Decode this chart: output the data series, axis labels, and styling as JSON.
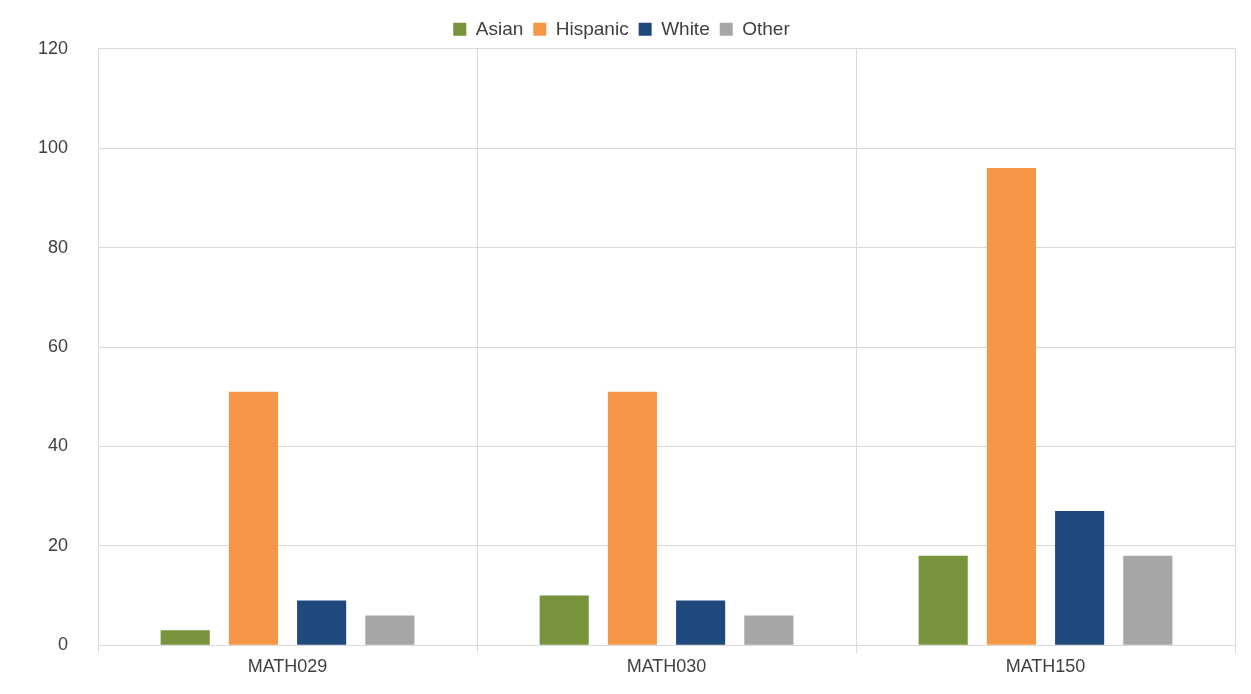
{
  "chart_data": {
    "type": "bar",
    "categories": [
      "MATH029",
      "MATH030",
      "MATH150"
    ],
    "series": [
      {
        "name": "Asian",
        "color": "#77933c",
        "values": [
          3,
          10,
          18
        ]
      },
      {
        "name": "Hispanic",
        "color": "#f79646",
        "values": [
          51,
          51,
          96
        ]
      },
      {
        "name": "White",
        "color": "#1f497d",
        "values": [
          9,
          9,
          27
        ]
      },
      {
        "name": "Other",
        "color": "#a6a6a6",
        "values": [
          6,
          6,
          18
        ]
      }
    ],
    "ylim": [
      0,
      120
    ],
    "yticks": [
      0,
      20,
      40,
      60,
      80,
      100,
      120
    ],
    "grid": true,
    "legend": "top"
  }
}
